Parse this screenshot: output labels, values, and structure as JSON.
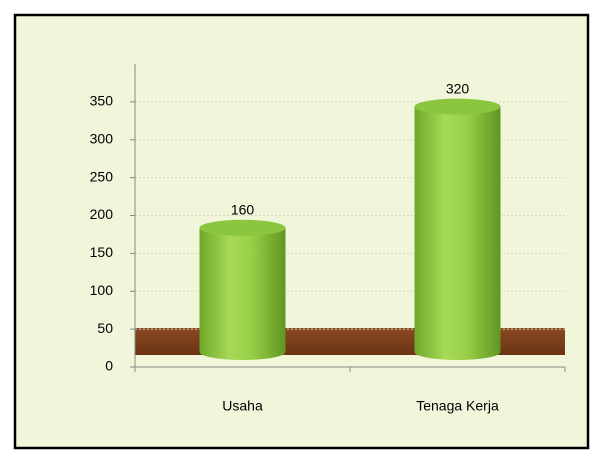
{
  "chart_data": {
    "type": "bar",
    "categories": [
      "Usaha",
      "Tenaga Kerja"
    ],
    "values": [
      160,
      320
    ],
    "color": "#8cc63f",
    "ylim": [
      0,
      400
    ],
    "yticks": [
      0,
      50,
      100,
      150,
      200,
      250,
      300,
      350
    ],
    "grid": true
  }
}
